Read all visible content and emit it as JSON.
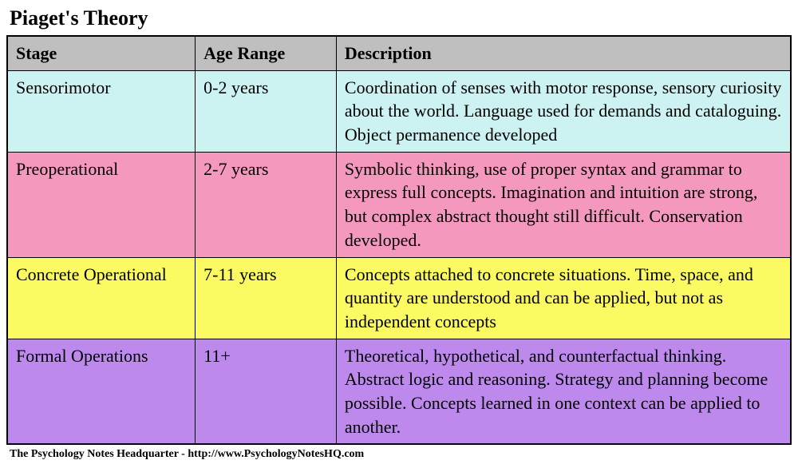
{
  "title": "Piaget's Theory",
  "footer": "The Psychology Notes Headquarter - http://www.PsychologyNotesHQ.com",
  "table": {
    "header_bg": "#bfbfbf",
    "columns": [
      "Stage",
      "Age Range",
      "Description"
    ],
    "rows": [
      {
        "stage": "Sensorimotor",
        "age": "0-2 years",
        "description": "Coordination of senses with motor response, sensory curiosity about the world. Language used for demands and cataloguing. Object permanence developed",
        "bg": "#cdf2f2"
      },
      {
        "stage": "Preoperational",
        "age": "2-7 years",
        "description": "Symbolic thinking, use of proper syntax and grammar to express full concepts. Imagination and intuition are strong, but complex abstract thought still difficult. Conservation developed.",
        "bg": "#f598bd"
      },
      {
        "stage": "Concrete Operational",
        "age": "7-11 years",
        "description": "Concepts attached to concrete situations. Time, space, and quantity are understood and can be applied, but not as independent concepts",
        "bg": "#fbfa62"
      },
      {
        "stage": "Formal Operations",
        "age": "11+",
        "description": "Theoretical, hypothetical, and counterfactual thinking. Abstract logic and reasoning. Strategy and planning become possible. Concepts learned in one context can be applied to another.",
        "bg": "#bd89ed"
      }
    ]
  }
}
